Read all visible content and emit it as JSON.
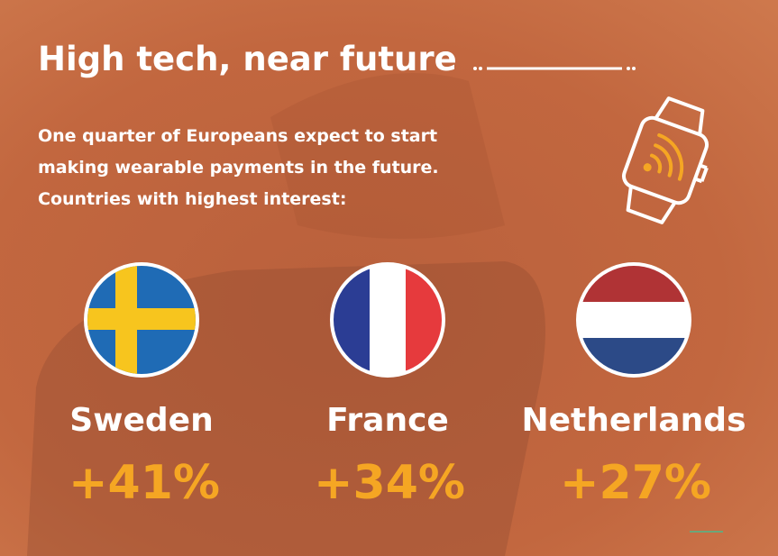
{
  "header": {
    "title": "High tech, near future"
  },
  "intro": {
    "lines": [
      "One quarter of Europeans expect to start",
      "making wearable payments in the future.",
      "Countries with highest interest:"
    ]
  },
  "countries": [
    {
      "name": "Sweden",
      "change": "+41%"
    },
    {
      "name": "France",
      "change": "+34%"
    },
    {
      "name": "Netherlands",
      "change": "+27%"
    }
  ]
}
